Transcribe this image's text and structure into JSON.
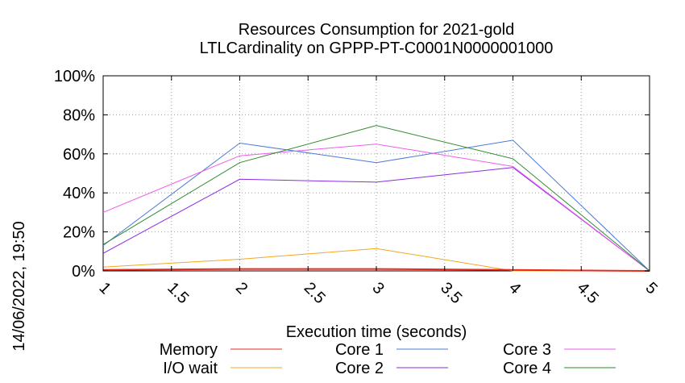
{
  "chart_data": {
    "type": "line",
    "title": [
      "Resources Consumption for 2021-gold",
      "LTLCardinality on GPPP-PT-C0001N0000001000"
    ],
    "xlabel": "Execution time (seconds)",
    "ylabel": "",
    "xlim": [
      1,
      5
    ],
    "ylim": [
      0,
      100
    ],
    "x_ticks": [
      "1",
      "1.5",
      "2",
      "2.5",
      "3",
      "3.5",
      "4",
      "4.5",
      "5"
    ],
    "y_ticks": [
      "0%",
      "20%",
      "40%",
      "60%",
      "80%",
      "100%"
    ],
    "grid": true,
    "legend_position": "bottom",
    "side_label": "14/06/2022, 19:50",
    "x": [
      1,
      2,
      3,
      4,
      5
    ],
    "series": [
      {
        "name": "Memory",
        "color": "#e8291c",
        "values": [
          0.5,
          1,
          1,
          0.5,
          0
        ]
      },
      {
        "name": "I/O wait",
        "color": "#f5a623",
        "values": [
          2,
          6,
          11.5,
          0,
          0
        ]
      },
      {
        "name": "Core 1",
        "color": "#4a79d6",
        "values": [
          13,
          65.5,
          55.5,
          67,
          0
        ]
      },
      {
        "name": "Core 2",
        "color": "#8a2be2",
        "values": [
          9,
          47,
          45.5,
          53,
          0
        ]
      },
      {
        "name": "Core 3",
        "color": "#ee5cee",
        "values": [
          30,
          59,
          65,
          53.5,
          0
        ]
      },
      {
        "name": "Core 4",
        "color": "#2e8b2e",
        "values": [
          13.5,
          55.5,
          74.5,
          57.5,
          0
        ]
      }
    ]
  }
}
